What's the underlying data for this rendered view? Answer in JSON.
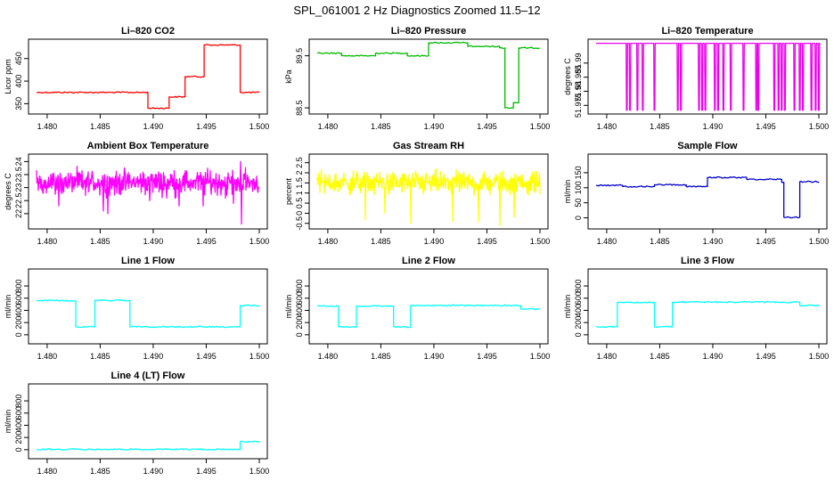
{
  "title": "SPL_061001  2 Hz Diagnostics Zoomed 11.5–12",
  "x_ticks": [
    "1.480",
    "1.485",
    "1.490",
    "1.495",
    "1.500"
  ],
  "chart_data": [
    {
      "id": "co2",
      "type": "line",
      "title": "Li–820 CO2",
      "ylabel": "Licor ppm",
      "color": "#ff0000",
      "xlim": [
        1.479,
        1.5
      ],
      "ylim": [
        335,
        485
      ],
      "yticks": [
        350,
        400,
        450
      ],
      "x": [
        1.479,
        1.4895,
        1.4895,
        1.4915,
        1.4915,
        1.493,
        1.493,
        1.4935,
        1.4935,
        1.4948,
        1.4948,
        1.4982,
        1.4982,
        1.5
      ],
      "y": [
        375,
        375,
        340,
        340,
        365,
        365,
        410,
        410,
        410,
        410,
        480,
        480,
        375,
        375
      ]
    },
    {
      "id": "pressure",
      "type": "line",
      "title": "Li–820 Pressure",
      "ylabel": "kPa",
      "color": "#00bb00",
      "xlim": [
        1.479,
        1.5
      ],
      "ylim": [
        88.45,
        89.75
      ],
      "yticks": [
        88.5,
        89.5
      ],
      "x": [
        1.479,
        1.4813,
        1.4813,
        1.4845,
        1.4845,
        1.4875,
        1.4875,
        1.4895,
        1.4895,
        1.4932,
        1.4932,
        1.4962,
        1.4962,
        1.4967,
        1.4967,
        1.4975,
        1.4975,
        1.498,
        1.498,
        1.5
      ],
      "y": [
        89.55,
        89.55,
        89.5,
        89.5,
        89.55,
        89.55,
        89.5,
        89.5,
        89.75,
        89.75,
        89.68,
        89.68,
        89.65,
        89.65,
        88.5,
        88.5,
        88.6,
        88.6,
        89.65,
        89.65
      ]
    },
    {
      "id": "temperature",
      "type": "line",
      "title": "Li–820 Temperature",
      "ylabel": "degrees C",
      "color": "#ee00ee",
      "xlim": [
        1.479,
        1.5
      ],
      "ylim": [
        51.9732,
        51.9972
      ],
      "yticks": [
        51.975,
        51.98,
        51.985,
        51.99
      ],
      "base": 51.997,
      "low": 51.9733,
      "drops": [
        1.4819,
        1.4822,
        1.4829,
        1.4834,
        1.4845,
        1.4867,
        1.487,
        1.4887,
        1.489,
        1.4893,
        1.4902,
        1.4905,
        1.491,
        1.4917,
        1.4929,
        1.4941,
        1.4943,
        1.4958,
        1.4962,
        1.4965,
        1.4968,
        1.4977,
        1.4982,
        1.4985,
        1.4993,
        1.4997,
        1.5
      ]
    },
    {
      "id": "box_temp",
      "type": "line",
      "title": "Ambient Box Temperature",
      "ylabel": "degrees C",
      "color": "#ff00ff",
      "xlim": [
        1.479,
        1.5
      ],
      "ylim": [
        21.55,
        24.15
      ],
      "yticks": [
        22.0,
        22.5,
        23.0,
        23.5,
        24.0
      ],
      "mean": 23.2,
      "noise": 0.45,
      "spikes": [
        [
          1.4811,
          22.3
        ],
        [
          1.4836,
          22.7
        ],
        [
          1.4853,
          22.1
        ],
        [
          1.4857,
          22.0
        ],
        [
          1.4866,
          22.8
        ],
        [
          1.4897,
          22.5
        ],
        [
          1.4913,
          22.6
        ],
        [
          1.4924,
          22.3
        ],
        [
          1.4947,
          22.3
        ],
        [
          1.4968,
          22.6
        ],
        [
          1.4976,
          22.4
        ],
        [
          1.4982,
          24.0
        ],
        [
          1.4983,
          21.6
        ]
      ]
    },
    {
      "id": "rh",
      "type": "line",
      "title": "Gas Stream RH",
      "ylabel": "percent",
      "color": "#ffff00",
      "xlim": [
        1.479,
        1.5
      ],
      "ylim": [
        -0.6,
        2.75
      ],
      "yticks": [
        -0.5,
        0.0,
        0.5,
        1.0,
        1.5,
        2.0,
        2.5
      ],
      "mean": 1.5,
      "noise": 0.55,
      "spikes": [
        [
          1.4835,
          -0.3
        ],
        [
          1.4854,
          0.0
        ],
        [
          1.4878,
          -0.5
        ],
        [
          1.4918,
          -0.4
        ],
        [
          1.4942,
          -0.4
        ],
        [
          1.4962,
          -0.6
        ],
        [
          1.4976,
          -0.2
        ]
      ]
    },
    {
      "id": "sample_flow",
      "type": "line",
      "title": "Sample Flow",
      "ylabel": "ml/min",
      "color": "#0000cc",
      "xlim": [
        1.479,
        1.5
      ],
      "ylim": [
        -25,
        200
      ],
      "yticks": [
        0,
        50,
        100,
        150
      ],
      "x": [
        1.479,
        1.4815,
        1.4815,
        1.4845,
        1.4845,
        1.4875,
        1.4875,
        1.4895,
        1.4895,
        1.4932,
        1.4932,
        1.4965,
        1.4965,
        1.4967,
        1.4967,
        1.4982,
        1.4982,
        1.5
      ],
      "y": [
        108,
        108,
        104,
        104,
        110,
        110,
        104,
        104,
        134,
        134,
        128,
        128,
        118,
        118,
        2,
        2,
        120,
        120
      ]
    },
    {
      "id": "line1",
      "type": "line",
      "title": "Line 1 Flow",
      "ylabel": "ml/min",
      "color": "#00ffff",
      "xlim": [
        1.479,
        1.5
      ],
      "ylim": [
        -90,
        1020
      ],
      "yticks": [
        0,
        200,
        400,
        600,
        800
      ],
      "x": [
        1.479,
        1.4827,
        1.4827,
        1.4845,
        1.4845,
        1.4878,
        1.4878,
        1.4982,
        1.4982,
        1.5
      ],
      "y": [
        560,
        560,
        130,
        130,
        565,
        565,
        130,
        130,
        480,
        480
      ]
    },
    {
      "id": "line2",
      "type": "line",
      "title": "Line 2 Flow",
      "ylabel": "ml/min",
      "color": "#00ffff",
      "xlim": [
        1.479,
        1.5
      ],
      "ylim": [
        -90,
        1020
      ],
      "yticks": [
        0,
        200,
        400,
        600,
        800
      ],
      "x": [
        1.479,
        1.481,
        1.481,
        1.4827,
        1.4827,
        1.4862,
        1.4862,
        1.4878,
        1.4878,
        1.4982,
        1.4982,
        1.5
      ],
      "y": [
        470,
        470,
        130,
        130,
        470,
        470,
        130,
        130,
        480,
        480,
        420,
        420
      ]
    },
    {
      "id": "line3",
      "type": "line",
      "title": "Line 3 Flow",
      "ylabel": "ml/min",
      "color": "#00ffff",
      "xlim": [
        1.479,
        1.5
      ],
      "ylim": [
        -90,
        1020
      ],
      "yticks": [
        0,
        200,
        400,
        600,
        800
      ],
      "x": [
        1.479,
        1.481,
        1.481,
        1.4845,
        1.4845,
        1.4862,
        1.4862,
        1.4982,
        1.4982,
        1.5
      ],
      "y": [
        130,
        130,
        530,
        530,
        130,
        130,
        535,
        535,
        480,
        480
      ]
    },
    {
      "id": "line4",
      "type": "line",
      "title": "Line 4 (LT) Flow",
      "ylabel": "ml/min",
      "color": "#00ffff",
      "xlim": [
        1.479,
        1.5
      ],
      "ylim": [
        -90,
        1020
      ],
      "yticks": [
        0,
        200,
        400,
        600,
        800
      ],
      "x": [
        1.479,
        1.4982,
        1.4982,
        1.5
      ],
      "y": [
        5,
        5,
        130,
        130
      ]
    }
  ]
}
